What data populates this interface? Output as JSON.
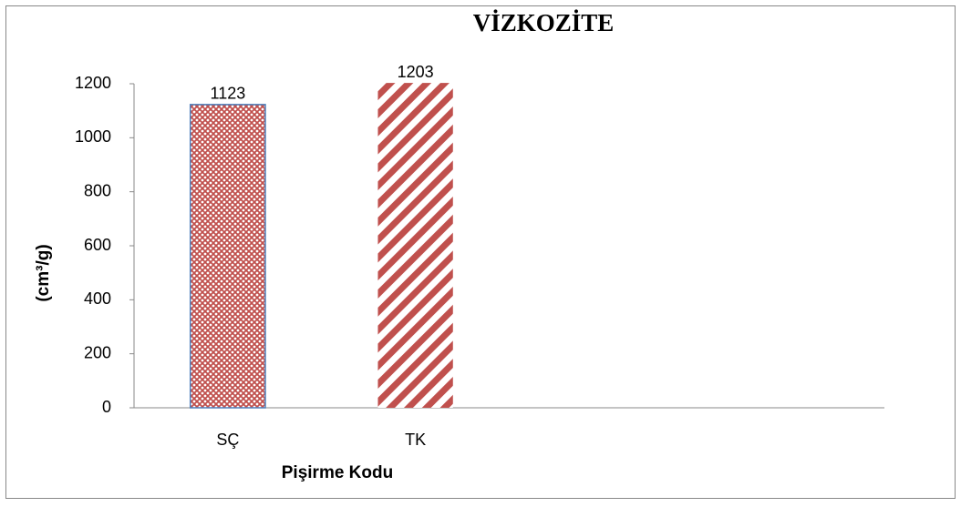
{
  "chart_data": {
    "type": "bar",
    "title": "VİZKOZİTE",
    "x_label": "Pişirme Kodu",
    "y_label": "(cm³/g)",
    "categories": [
      "SÇ",
      "TK",
      null,
      null
    ],
    "values": [
      1123,
      1203,
      null,
      null
    ],
    "color": "#c0504d",
    "edge_color": "#4f81bd",
    "ylim": [
      0,
      1200
    ],
    "yticks": [
      0,
      200,
      400,
      600,
      800,
      1000,
      1200
    ],
    "grid": false
  }
}
